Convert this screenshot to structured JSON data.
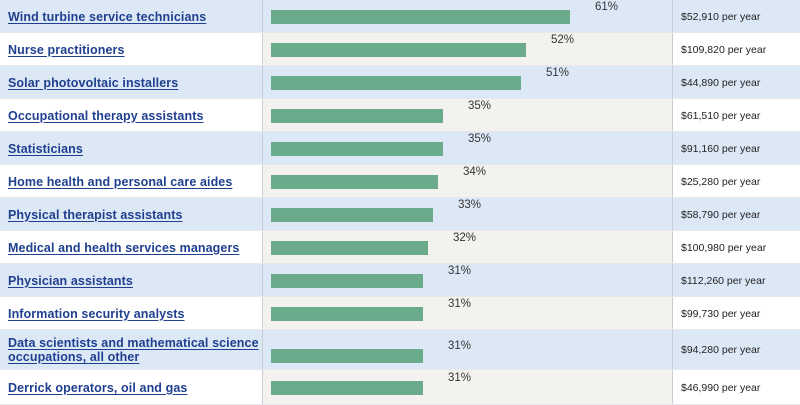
{
  "chart_data": {
    "type": "bar",
    "orientation": "horizontal",
    "xlim": [
      0,
      100
    ],
    "categories": [
      "Wind turbine service technicians",
      "Nurse practitioners",
      "Solar photovoltaic installers",
      "Occupational therapy assistants",
      "Statisticians",
      "Home health and personal care aides",
      "Physical therapist assistants",
      "Medical and health services managers",
      "Physician assistants",
      "Information security analysts",
      "Data scientists and mathematical science occupations, all other",
      "Derrick operators, oil and gas"
    ],
    "values": [
      61,
      52,
      51,
      35,
      35,
      34,
      33,
      32,
      31,
      31,
      31,
      31
    ],
    "value_labels": [
      "61%",
      "52%",
      "51%",
      "35%",
      "35%",
      "34%",
      "33%",
      "32%",
      "31%",
      "31%",
      "31%",
      "31%"
    ],
    "pay": [
      "$52,910 per year",
      "$109,820 per year",
      "$44,890 per year",
      "$61,510 per year",
      "$91,160 per year",
      "$25,280 per year",
      "$58,790 per year",
      "$100,980 per year",
      "$112,260 per year",
      "$99,730 per year",
      "$94,280 per year",
      "$46,990 per year"
    ],
    "bar_color": "#6aab8c",
    "row_colors": [
      "#dde8f7",
      "#f3f2ee"
    ],
    "link_color": "#1f3f8f"
  }
}
